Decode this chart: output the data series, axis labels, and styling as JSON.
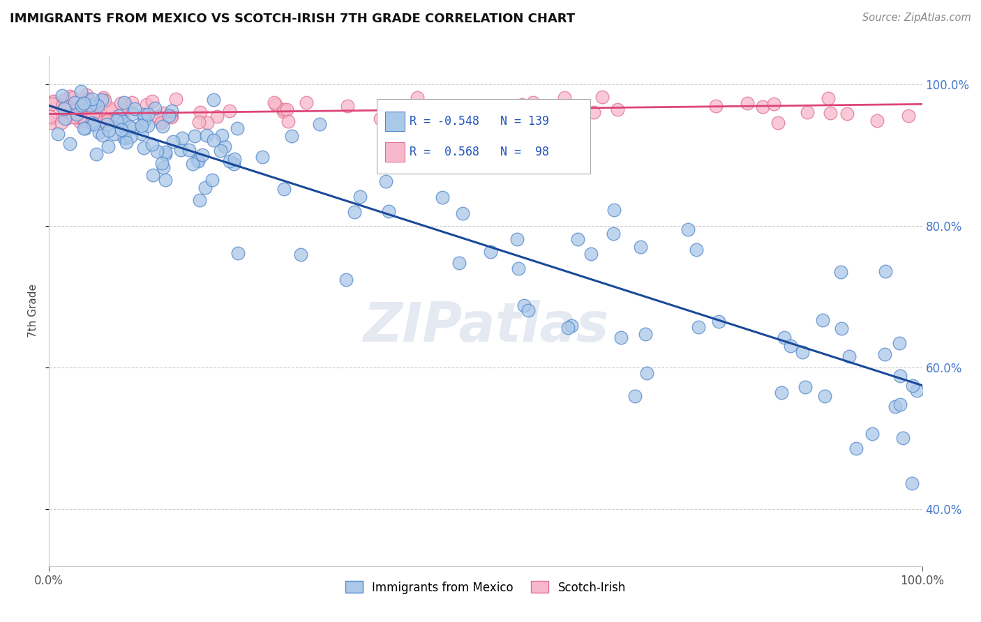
{
  "title": "IMMIGRANTS FROM MEXICO VS SCOTCH-IRISH 7TH GRADE CORRELATION CHART",
  "source": "Source: ZipAtlas.com",
  "ylabel": "7th Grade",
  "blue_R": "-0.548",
  "blue_N": "139",
  "pink_R": "0.568",
  "pink_N": "98",
  "blue_color": "#aac8e8",
  "blue_edge": "#5588cc",
  "pink_color": "#f8b8cc",
  "pink_edge": "#e07090",
  "blue_line_color": "#1a4a99",
  "pink_line_color": "#dd4477",
  "legend_blue_label": "Immigrants from Mexico",
  "legend_pink_label": "Scotch-Irish",
  "watermark": "ZIPatlas",
  "grid_color": "#cccccc",
  "background_color": "#ffffff",
  "ytick_vals": [
    1.0,
    0.8,
    0.6,
    0.4
  ],
  "ytick_labels": [
    "100.0%",
    "80.0%",
    "60.0%",
    "40.0%"
  ],
  "xlim": [
    0.0,
    1.0
  ],
  "ylim": [
    0.32,
    1.04
  ],
  "blue_line_x0": 0.0,
  "blue_line_y0": 0.97,
  "blue_line_x1": 1.0,
  "blue_line_y1": 0.575,
  "pink_line_x0": 0.0,
  "pink_line_y0": 0.958,
  "pink_line_x1": 1.0,
  "pink_line_y1": 0.972
}
